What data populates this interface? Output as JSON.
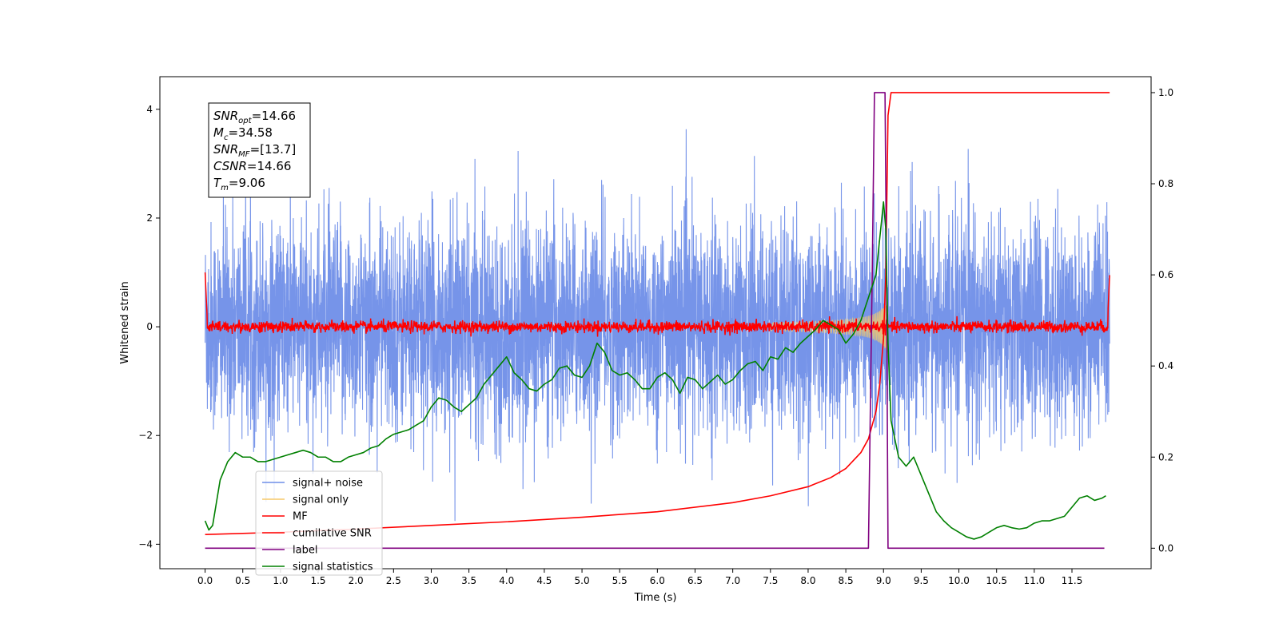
{
  "chart_data": {
    "type": "line",
    "xlabel": "Time (s)",
    "ylabel": "Whitened strain",
    "xlim": [
      -0.6,
      12.55
    ],
    "ylim": [
      -4.45,
      4.6
    ],
    "y2lim": [
      -0.045,
      1.035
    ],
    "x_ticks": [
      0.0,
      0.5,
      1.0,
      1.5,
      2.0,
      2.5,
      3.0,
      3.5,
      4.0,
      4.5,
      5.0,
      5.5,
      6.0,
      6.5,
      7.0,
      7.5,
      8.0,
      8.5,
      9.0,
      9.5,
      10.0,
      10.5,
      11.0,
      11.5
    ],
    "x_tick_labels": [
      "0.0",
      "0.5",
      "1.0",
      "1.5",
      "2.0",
      "2.5",
      "3.0",
      "3.5",
      "4.0",
      "4.5",
      "5.0",
      "5.5",
      "6.0",
      "6.5",
      "7.0",
      "7.5",
      "8.0",
      "8.5",
      "9.0",
      "9.5",
      "10.0",
      "10.5",
      "11.0",
      "11.5"
    ],
    "y_ticks": [
      4,
      2,
      0,
      -2,
      -4
    ],
    "y_tick_labels": [
      "4",
      "2",
      "0",
      "−2",
      "−4"
    ],
    "y2_ticks": [
      1.0,
      0.8,
      0.6,
      0.4,
      0.2,
      0.0
    ],
    "y2_tick_labels": [
      "1.0",
      "0.8",
      "0.6",
      "0.4",
      "0.2",
      "0.0"
    ],
    "grid": false,
    "legend_position": "lower-left",
    "annotation": {
      "lines": [
        {
          "main": "SNR",
          "sub": "opt",
          "rest": "=14.66"
        },
        {
          "main": "M",
          "sub": "c",
          "rest": "=34.58"
        },
        {
          "main": "SNR",
          "sub": "MF",
          "rest": "=[13.7]"
        },
        {
          "main": "CSNR",
          "sub": "",
          "rest": "=14.66"
        },
        {
          "main": "T",
          "sub": "m",
          "rest": "=9.06"
        }
      ]
    },
    "series": [
      {
        "name": "signal+ noise",
        "color": "#6f8ee8",
        "axis": "left",
        "style": "noise",
        "x_range": [
          0.0,
          12.0
        ],
        "amplitude_typical": [
          -2.5,
          2.6
        ],
        "amplitude_extremes": [
          -4.0,
          3.9
        ]
      },
      {
        "name": "signal only",
        "color": "#f5c96a",
        "axis": "left",
        "style": "chirp",
        "x_range": [
          7.5,
          9.06
        ],
        "peak_amplitude": 0.55
      },
      {
        "name": "MF",
        "color": "#ff0000",
        "axis": "left",
        "style": "mf",
        "x_range": [
          0.0,
          12.0
        ],
        "baseline": 0.0,
        "noise_amplitude": 0.12,
        "edge_value_start": 1.0,
        "edge_value_end": 0.95
      },
      {
        "name": "cumilative SNR",
        "color": "#ff0000",
        "axis": "right",
        "x": [
          0.0,
          1.0,
          2.0,
          3.0,
          4.0,
          5.0,
          6.0,
          7.0,
          7.5,
          8.0,
          8.3,
          8.5,
          8.7,
          8.8,
          8.9,
          8.95,
          9.0,
          9.03,
          9.06,
          9.1,
          12.0
        ],
        "values": [
          0.03,
          0.035,
          0.042,
          0.05,
          0.058,
          0.068,
          0.08,
          0.1,
          0.115,
          0.135,
          0.155,
          0.175,
          0.21,
          0.24,
          0.3,
          0.36,
          0.46,
          0.6,
          0.95,
          1.0,
          1.0
        ]
      },
      {
        "name": "label",
        "color": "#800080",
        "axis": "right",
        "x": [
          0.0,
          8.8,
          8.85,
          8.88,
          9.02,
          9.04,
          9.06,
          11.93
        ],
        "values": [
          0.0,
          0.0,
          0.6,
          1.0,
          1.0,
          0.6,
          0.0,
          0.0
        ]
      },
      {
        "name": "signal statistics",
        "color": "#008000",
        "axis": "right",
        "x": [
          0.0,
          0.05,
          0.1,
          0.15,
          0.2,
          0.3,
          0.35,
          0.4,
          0.5,
          0.6,
          0.7,
          0.8,
          0.9,
          1.0,
          1.1,
          1.2,
          1.3,
          1.4,
          1.5,
          1.6,
          1.7,
          1.8,
          1.9,
          2.0,
          2.1,
          2.2,
          2.3,
          2.4,
          2.5,
          2.6,
          2.7,
          2.8,
          2.9,
          3.0,
          3.1,
          3.2,
          3.3,
          3.4,
          3.5,
          3.6,
          3.7,
          3.8,
          3.9,
          4.0,
          4.1,
          4.2,
          4.3,
          4.4,
          4.5,
          4.6,
          4.7,
          4.8,
          4.9,
          5.0,
          5.1,
          5.2,
          5.3,
          5.4,
          5.5,
          5.6,
          5.7,
          5.8,
          5.9,
          6.0,
          6.1,
          6.2,
          6.3,
          6.4,
          6.5,
          6.6,
          6.7,
          6.8,
          6.9,
          7.0,
          7.1,
          7.2,
          7.3,
          7.4,
          7.5,
          7.6,
          7.7,
          7.8,
          7.9,
          8.0,
          8.1,
          8.2,
          8.3,
          8.4,
          8.5,
          8.6,
          8.7,
          8.8,
          8.9,
          9.0,
          9.03,
          9.06,
          9.1,
          9.2,
          9.3,
          9.4,
          9.5,
          9.6,
          9.7,
          9.8,
          9.9,
          10.0,
          10.1,
          10.2,
          10.3,
          10.4,
          10.5,
          10.6,
          10.7,
          10.8,
          10.9,
          11.0,
          11.1,
          11.2,
          11.3,
          11.4,
          11.5,
          11.6,
          11.7,
          11.8,
          11.9,
          11.95
        ],
        "values": [
          0.06,
          0.04,
          0.05,
          0.1,
          0.15,
          0.19,
          0.2,
          0.21,
          0.2,
          0.2,
          0.19,
          0.19,
          0.195,
          0.2,
          0.205,
          0.21,
          0.215,
          0.21,
          0.2,
          0.2,
          0.19,
          0.19,
          0.2,
          0.205,
          0.21,
          0.22,
          0.225,
          0.24,
          0.25,
          0.255,
          0.26,
          0.27,
          0.28,
          0.31,
          0.33,
          0.325,
          0.31,
          0.3,
          0.315,
          0.33,
          0.36,
          0.38,
          0.4,
          0.42,
          0.385,
          0.37,
          0.35,
          0.345,
          0.36,
          0.37,
          0.395,
          0.4,
          0.38,
          0.375,
          0.4,
          0.45,
          0.43,
          0.39,
          0.38,
          0.385,
          0.37,
          0.35,
          0.35,
          0.375,
          0.385,
          0.37,
          0.34,
          0.375,
          0.37,
          0.35,
          0.365,
          0.38,
          0.36,
          0.37,
          0.39,
          0.405,
          0.41,
          0.39,
          0.42,
          0.415,
          0.44,
          0.43,
          0.45,
          0.465,
          0.48,
          0.5,
          0.49,
          0.48,
          0.45,
          0.47,
          0.5,
          0.55,
          0.6,
          0.76,
          0.7,
          0.45,
          0.28,
          0.2,
          0.18,
          0.2,
          0.16,
          0.12,
          0.08,
          0.06,
          0.045,
          0.035,
          0.025,
          0.02,
          0.025,
          0.035,
          0.045,
          0.05,
          0.045,
          0.042,
          0.045,
          0.055,
          0.06,
          0.06,
          0.065,
          0.07,
          0.09,
          0.11,
          0.115,
          0.105,
          0.11,
          0.115
        ]
      }
    ]
  }
}
